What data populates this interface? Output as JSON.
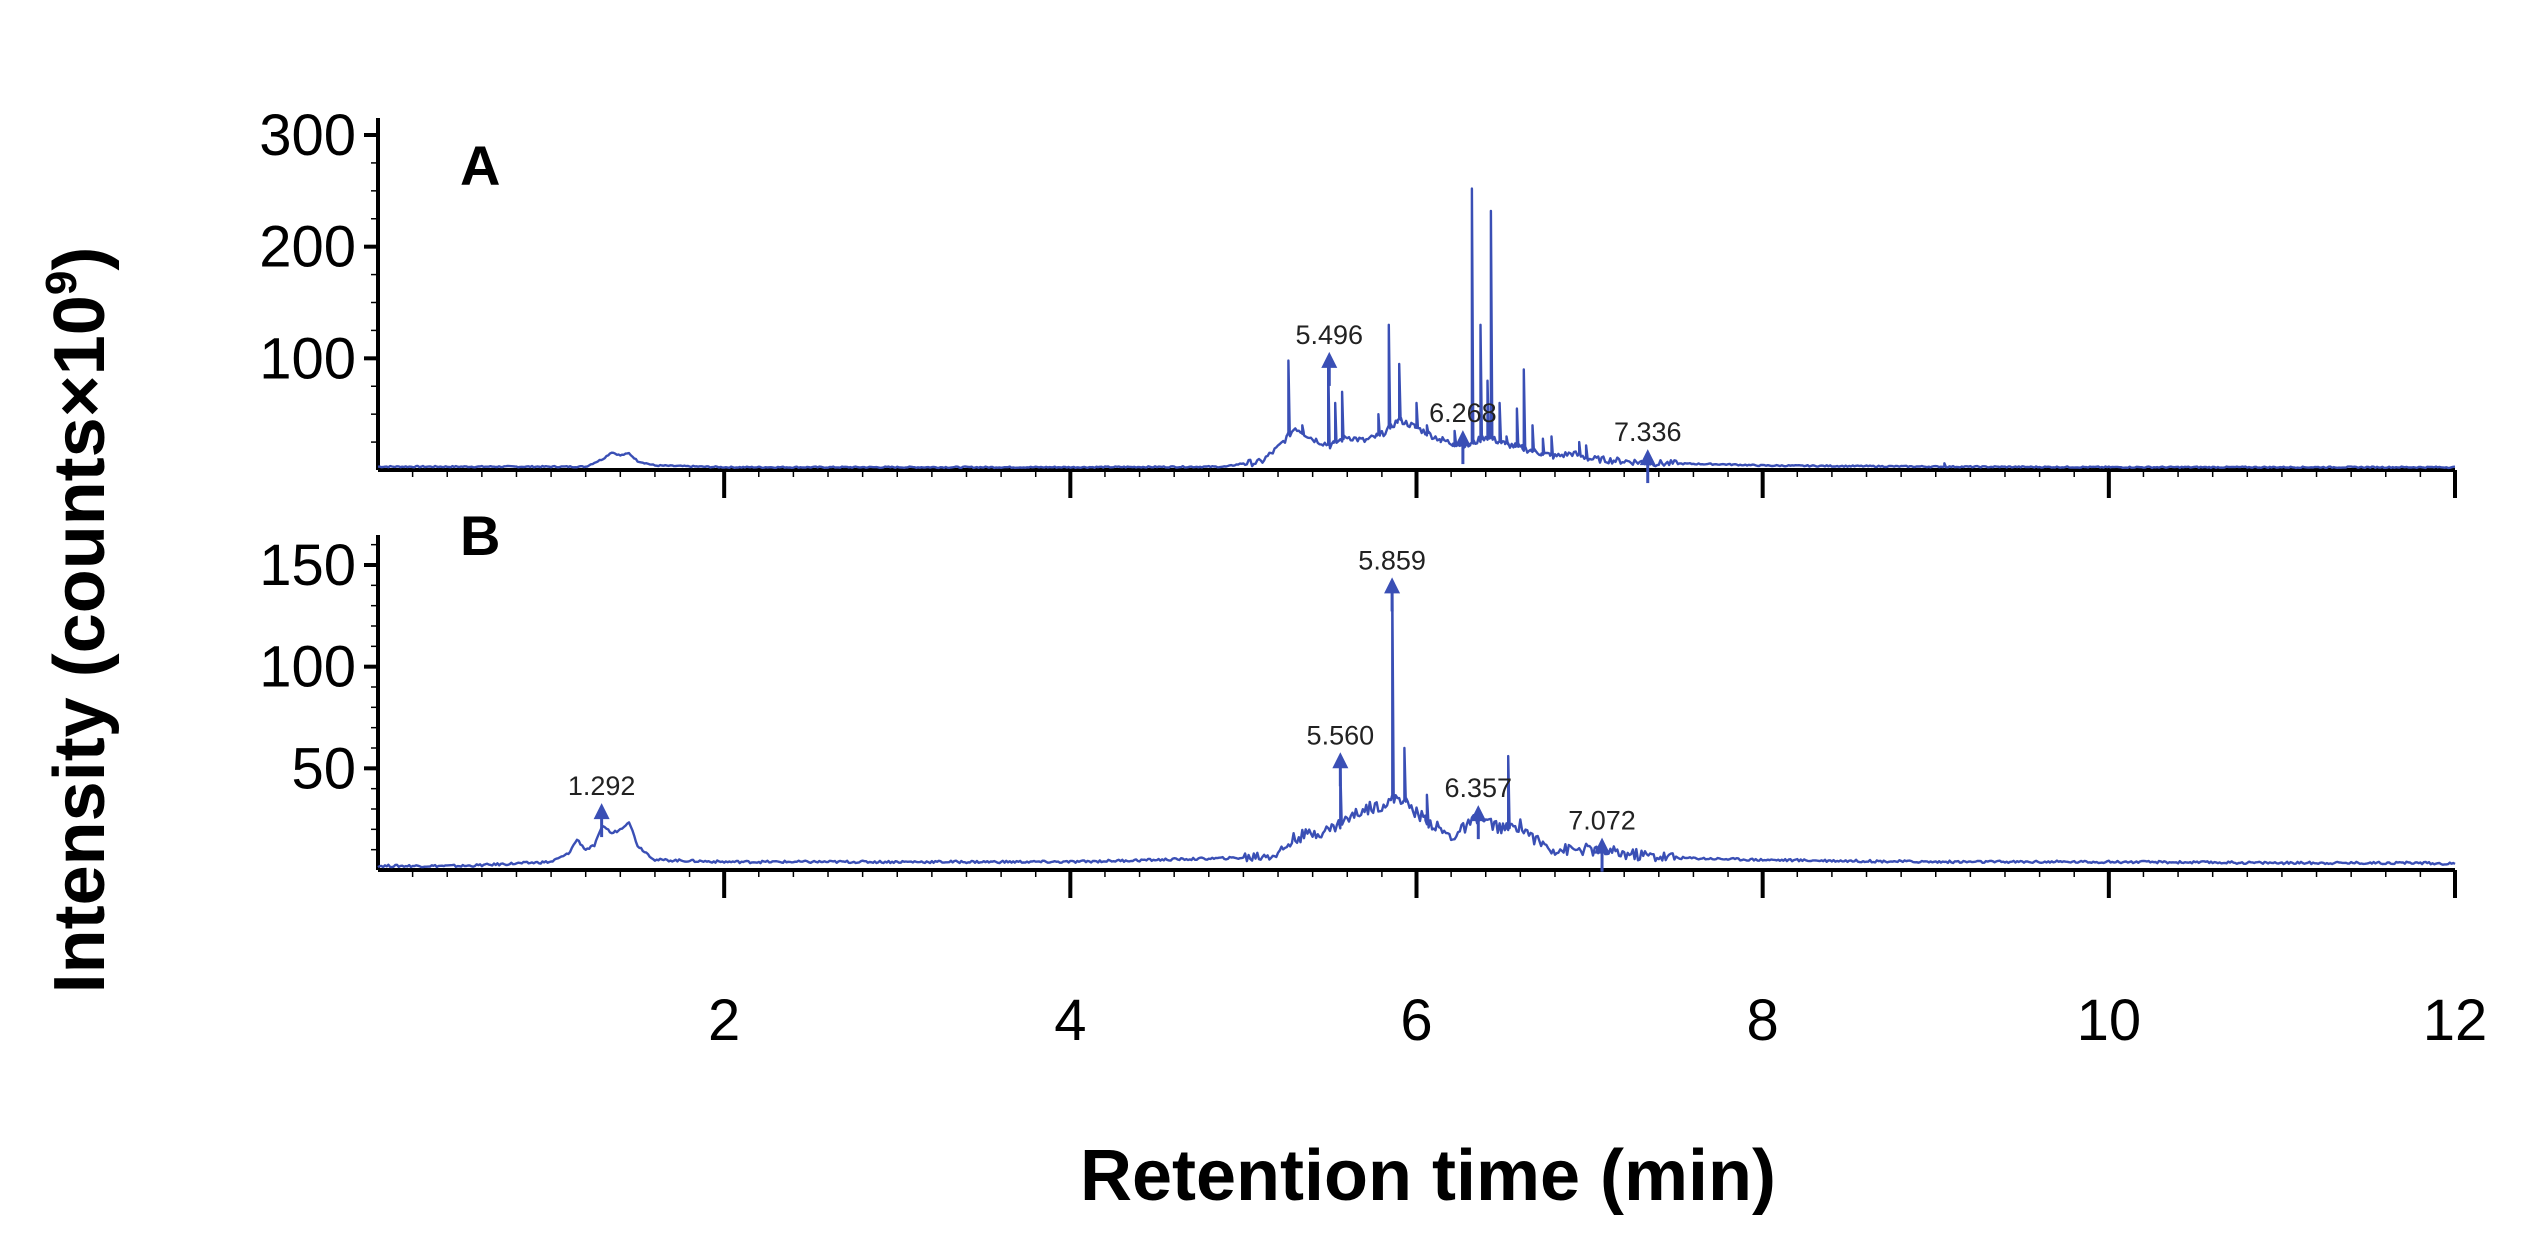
{
  "chart_data": {
    "type": "line",
    "xlabel": "Retention time (min)",
    "ylabel": "Intensity (counts",
    "ylabel_symbol": "×10",
    "ylabel_exponent": "9",
    "ylabel_close": ")",
    "x_ticks": [
      "2",
      "4",
      "6",
      "8",
      "10",
      "12"
    ],
    "xlim": [
      0,
      12
    ],
    "line_color": "#3a4fb5",
    "grid": false,
    "panels": [
      {
        "label": "A",
        "ylim": [
          0,
          300
        ],
        "y_ticks": [
          "100",
          "200",
          "300"
        ],
        "annotations": [
          {
            "x": 5.496,
            "y": 95,
            "text": "5.496"
          },
          {
            "x": 6.268,
            "y": 25,
            "text": "6.268"
          },
          {
            "x": 7.336,
            "y": 8,
            "text": "7.336"
          }
        ],
        "baseline": [
          [
            0.0,
            3
          ],
          [
            1.2,
            3
          ],
          [
            1.3,
            10
          ],
          [
            1.35,
            16
          ],
          [
            1.4,
            13
          ],
          [
            1.45,
            15
          ],
          [
            1.5,
            8
          ],
          [
            1.6,
            4
          ],
          [
            2.0,
            2.5
          ],
          [
            3.0,
            2.5
          ],
          [
            4.0,
            2.5
          ],
          [
            4.9,
            3
          ],
          [
            5.0,
            6
          ],
          [
            5.1,
            7
          ],
          [
            5.2,
            20
          ],
          [
            5.3,
            38
          ],
          [
            5.4,
            28
          ],
          [
            5.5,
            22
          ],
          [
            5.6,
            30
          ],
          [
            5.7,
            26
          ],
          [
            5.8,
            32
          ],
          [
            5.9,
            45
          ],
          [
            6.0,
            38
          ],
          [
            6.1,
            30
          ],
          [
            6.2,
            24
          ],
          [
            6.3,
            22
          ],
          [
            6.4,
            30
          ],
          [
            6.5,
            24
          ],
          [
            6.6,
            20
          ],
          [
            6.7,
            16
          ],
          [
            6.8,
            12
          ],
          [
            6.9,
            15
          ],
          [
            7.0,
            10
          ],
          [
            7.2,
            8
          ],
          [
            7.4,
            6
          ],
          [
            7.8,
            5
          ],
          [
            8.0,
            4
          ],
          [
            9.0,
            3
          ],
          [
            10.0,
            2.5
          ],
          [
            11.0,
            2.5
          ],
          [
            12.0,
            2.5
          ]
        ],
        "peaks": [
          [
            5.26,
            98
          ],
          [
            5.34,
            40
          ],
          [
            5.49,
            95
          ],
          [
            5.53,
            60
          ],
          [
            5.57,
            70
          ],
          [
            5.78,
            50
          ],
          [
            5.84,
            130
          ],
          [
            5.9,
            95
          ],
          [
            6.0,
            60
          ],
          [
            6.06,
            40
          ],
          [
            6.14,
            25
          ],
          [
            6.22,
            35
          ],
          [
            6.32,
            252
          ],
          [
            6.37,
            130
          ],
          [
            6.41,
            80
          ],
          [
            6.43,
            232
          ],
          [
            6.48,
            60
          ],
          [
            6.52,
            30
          ],
          [
            6.58,
            55
          ],
          [
            6.62,
            90
          ],
          [
            6.67,
            40
          ],
          [
            6.73,
            28
          ],
          [
            6.78,
            30
          ],
          [
            6.94,
            25
          ],
          [
            6.98,
            22
          ],
          [
            7.33,
            12
          ],
          [
            9.05,
            6
          ]
        ]
      },
      {
        "label": "B",
        "ylim": [
          0,
          170
        ],
        "y_ticks": [
          "50",
          "100",
          "150"
        ],
        "annotations": [
          {
            "x": 1.292,
            "y": 27,
            "text": "1.292"
          },
          {
            "x": 5.56,
            "y": 52,
            "text": "5.560"
          },
          {
            "x": 5.859,
            "y": 138,
            "text": "5.859"
          },
          {
            "x": 6.357,
            "y": 26,
            "text": "6.357"
          },
          {
            "x": 7.072,
            "y": 10,
            "text": "7.072"
          }
        ],
        "baseline": [
          [
            0.0,
            2
          ],
          [
            0.5,
            2
          ],
          [
            1.0,
            4
          ],
          [
            1.1,
            8
          ],
          [
            1.15,
            15
          ],
          [
            1.2,
            10
          ],
          [
            1.25,
            12
          ],
          [
            1.3,
            22
          ],
          [
            1.35,
            18
          ],
          [
            1.4,
            20
          ],
          [
            1.45,
            24
          ],
          [
            1.5,
            12
          ],
          [
            1.6,
            5
          ],
          [
            2.0,
            4
          ],
          [
            3.0,
            4
          ],
          [
            4.0,
            4
          ],
          [
            4.5,
            5
          ],
          [
            5.0,
            6
          ],
          [
            5.2,
            8
          ],
          [
            5.3,
            16
          ],
          [
            5.4,
            18
          ],
          [
            5.5,
            20
          ],
          [
            5.6,
            25
          ],
          [
            5.7,
            30
          ],
          [
            5.8,
            32
          ],
          [
            5.9,
            36
          ],
          [
            6.0,
            28
          ],
          [
            6.1,
            22
          ],
          [
            6.2,
            16
          ],
          [
            6.3,
            22
          ],
          [
            6.35,
            26
          ],
          [
            6.4,
            24
          ],
          [
            6.5,
            20
          ],
          [
            6.6,
            22
          ],
          [
            6.7,
            14
          ],
          [
            6.8,
            10
          ],
          [
            7.0,
            10
          ],
          [
            7.2,
            8
          ],
          [
            7.5,
            6
          ],
          [
            8.0,
            5
          ],
          [
            9.0,
            4
          ],
          [
            10.0,
            4
          ],
          [
            11.0,
            3.5
          ],
          [
            11.8,
            3.5
          ],
          [
            12.0,
            3
          ]
        ],
        "peaks": [
          [
            5.56,
            50
          ],
          [
            5.86,
            138
          ],
          [
            5.93,
            60
          ],
          [
            6.06,
            37
          ],
          [
            6.35,
            26
          ],
          [
            6.53,
            56
          ],
          [
            7.07,
            10
          ]
        ]
      }
    ]
  }
}
